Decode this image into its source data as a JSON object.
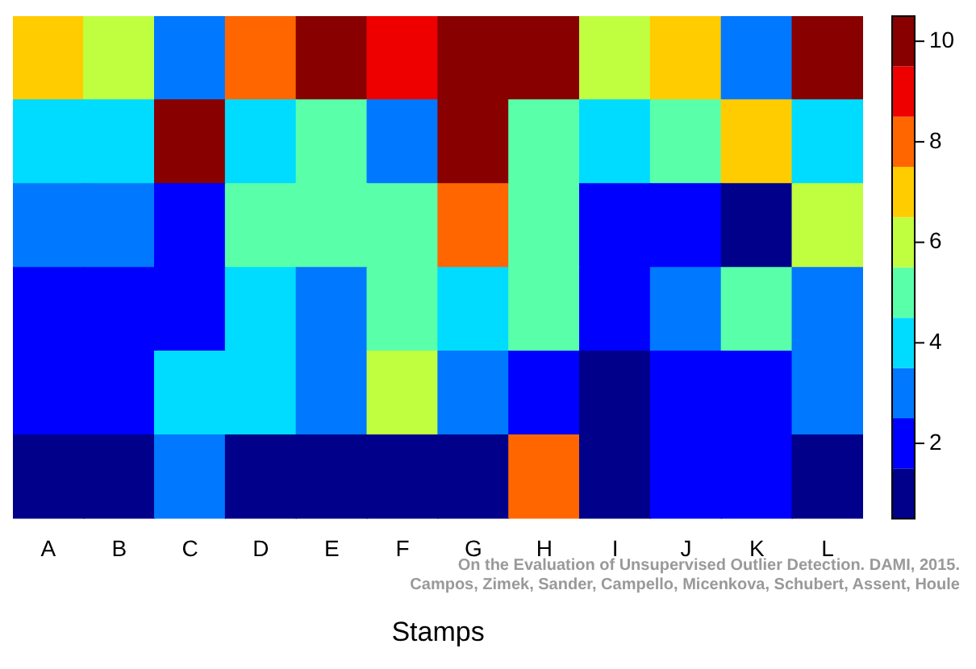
{
  "chart_data": {
    "type": "heatmap",
    "xlabel": "Stamps",
    "categories": [
      "A",
      "B",
      "C",
      "D",
      "E",
      "F",
      "G",
      "H",
      "I",
      "J",
      "K",
      "L"
    ],
    "y_categories": [
      null,
      null,
      null,
      null,
      null,
      null
    ],
    "cells": [
      [
        7,
        6,
        3,
        8,
        10,
        9,
        10,
        10,
        6,
        7,
        3,
        10
      ],
      [
        4,
        4,
        10,
        4,
        5,
        3,
        10,
        5,
        4,
        5,
        7,
        4
      ],
      [
        3,
        3,
        2,
        5,
        5,
        5,
        8,
        5,
        2,
        2,
        1,
        6
      ],
      [
        2,
        2,
        2,
        4,
        3,
        5,
        4,
        5,
        2,
        3,
        5,
        3
      ],
      [
        2,
        2,
        4,
        4,
        3,
        6,
        3,
        2,
        1,
        2,
        2,
        3
      ],
      [
        1,
        1,
        3,
        1,
        1,
        1,
        1,
        8,
        1,
        2,
        2,
        1
      ]
    ],
    "clim": [
      0.5,
      10.5
    ],
    "cticks": [
      2,
      4,
      6,
      8,
      10
    ],
    "colors": [
      "#00008a",
      "#0000ff",
      "#0078ff",
      "#00dcff",
      "#5affaa",
      "#c0ff40",
      "#ffcc00",
      "#ff6600",
      "#ee0000",
      "#880000"
    ],
    "annotations": [
      "On the Evaluation of Unsupervised Outlier Detection. DAMI, 2015.\nCampos, Zimek, Sander, Campello, Micenkova, Schubert, Assent, Houle"
    ]
  }
}
